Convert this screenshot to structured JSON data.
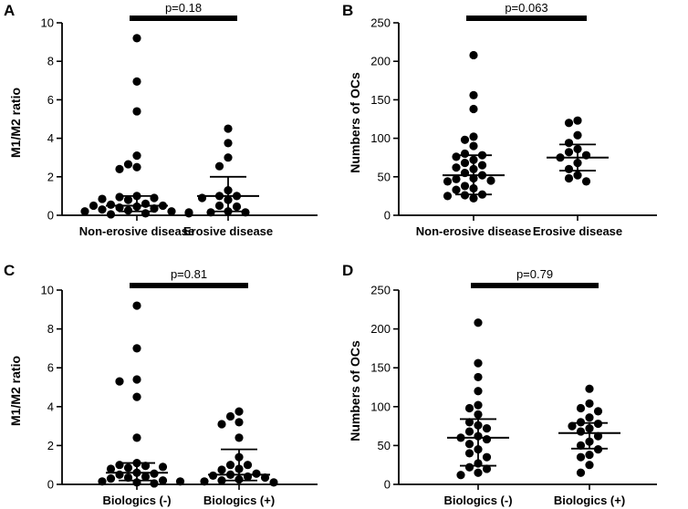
{
  "chart_data": [
    {
      "panel": "A",
      "type": "scatter",
      "title": "",
      "xlabel": "",
      "ylabel": "M1/M2 ratio",
      "ylim": [
        0,
        10
      ],
      "yticks": [
        0,
        2,
        4,
        6,
        8,
        10
      ],
      "categories": [
        "Non-erosive disease",
        "Erosive disease"
      ],
      "series": [
        {
          "name": "Non-erosive disease",
          "values": [
            9.2,
            6.95,
            5.4,
            3.1,
            2.65,
            2.5,
            2.4,
            1.0,
            0.95,
            0.9,
            0.85,
            0.8,
            0.6,
            0.55,
            0.5,
            0.5,
            0.45,
            0.4,
            0.35,
            0.3,
            0.25,
            0.2,
            0.2,
            0.15,
            0.1,
            0.1,
            0.05
          ],
          "median": 0.5,
          "iqr": [
            0.2,
            1.0
          ]
        },
        {
          "name": "Erosive disease",
          "values": [
            4.5,
            3.75,
            3.0,
            2.55,
            1.3,
            1.0,
            1.0,
            0.9,
            0.8,
            0.5,
            0.45,
            0.2,
            0.15,
            0.15
          ],
          "median": 1.0,
          "iqr": [
            0.2,
            2.0
          ]
        }
      ],
      "annotation": "p=0.18"
    },
    {
      "panel": "B",
      "type": "scatter",
      "title": "",
      "xlabel": "",
      "ylabel": "Numbers of OCs",
      "ylim": [
        0,
        250
      ],
      "yticks": [
        0,
        50,
        100,
        150,
        200,
        250
      ],
      "categories": [
        "Non-erosive disease",
        "Erosive disease"
      ],
      "series": [
        {
          "name": "Non-erosive disease",
          "values": [
            208,
            156,
            138,
            102,
            98,
            90,
            80,
            78,
            76,
            72,
            68,
            65,
            62,
            60,
            55,
            52,
            48,
            47,
            45,
            44,
            38,
            35,
            33,
            27,
            26,
            25,
            22
          ],
          "median": 52,
          "iqr": [
            27,
            78
          ]
        },
        {
          "name": "Erosive disease",
          "values": [
            123,
            120,
            104,
            94,
            86,
            82,
            78,
            75,
            68,
            60,
            52,
            48,
            44
          ],
          "median": 75,
          "iqr": [
            58,
            92
          ]
        }
      ],
      "annotation": "p=0.063"
    },
    {
      "panel": "C",
      "type": "scatter",
      "title": "",
      "xlabel": "",
      "ylabel": "M1/M2 ratio",
      "ylim": [
        0,
        10
      ],
      "yticks": [
        0,
        2,
        4,
        6,
        8,
        10
      ],
      "categories": [
        "Biologics (-)",
        "Biologics (+)"
      ],
      "series": [
        {
          "name": "Biologics (-)",
          "values": [
            9.2,
            7.0,
            5.4,
            5.3,
            4.5,
            2.4,
            1.1,
            1.0,
            0.95,
            0.9,
            0.85,
            0.8,
            0.6,
            0.55,
            0.5,
            0.4,
            0.35,
            0.3,
            0.2,
            0.15,
            0.15,
            0.1,
            0.05
          ],
          "median": 0.6,
          "iqr": [
            0.2,
            1.1
          ]
        },
        {
          "name": "Biologics (+)",
          "values": [
            3.75,
            3.5,
            3.2,
            3.1,
            2.4,
            1.4,
            1.0,
            1.0,
            0.8,
            0.75,
            0.55,
            0.5,
            0.45,
            0.4,
            0.35,
            0.25,
            0.2,
            0.15,
            0.1
          ],
          "median": 0.5,
          "iqr": [
            0.2,
            1.8
          ]
        }
      ],
      "annotation": "p=0.81"
    },
    {
      "panel": "D",
      "type": "scatter",
      "title": "",
      "xlabel": "",
      "ylabel": "Numbers of OCs",
      "ylim": [
        0,
        250
      ],
      "yticks": [
        0,
        50,
        100,
        150,
        200,
        250
      ],
      "categories": [
        "Biologics (-)",
        "Biologics (+)"
      ],
      "series": [
        {
          "name": "Biologics (-)",
          "values": [
            208,
            156,
            138,
            120,
            102,
            98,
            90,
            80,
            76,
            72,
            68,
            62,
            60,
            58,
            52,
            45,
            40,
            35,
            27,
            22,
            20,
            15,
            12
          ],
          "median": 60,
          "iqr": [
            24,
            84
          ]
        },
        {
          "name": "Biologics (+)",
          "values": [
            123,
            104,
            98,
            94,
            86,
            80,
            78,
            75,
            72,
            68,
            62,
            55,
            50,
            45,
            38,
            35,
            25,
            15
          ],
          "median": 66,
          "iqr": [
            46,
            79
          ]
        }
      ],
      "annotation": "p=0.79"
    }
  ]
}
